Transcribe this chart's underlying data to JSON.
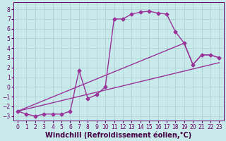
{
  "xlabel": "Windchill (Refroidissement éolien,°C)",
  "background_color": "#c8eaea",
  "line_color": "#993399",
  "grid_color": "#aacccc",
  "xlim": [
    -0.5,
    23.5
  ],
  "ylim": [
    -3.5,
    8.7
  ],
  "xticks": [
    0,
    1,
    2,
    3,
    4,
    5,
    6,
    7,
    8,
    9,
    10,
    11,
    12,
    13,
    14,
    15,
    16,
    17,
    18,
    19,
    20,
    21,
    22,
    23
  ],
  "yticks": [
    -3,
    -2,
    -1,
    0,
    1,
    2,
    3,
    4,
    5,
    6,
    7,
    8
  ],
  "line1_x": [
    0,
    1,
    2,
    3,
    4,
    5,
    6,
    7,
    8,
    9,
    10,
    11,
    12,
    13,
    14,
    15,
    16,
    17,
    18,
    19,
    20,
    21,
    22,
    23
  ],
  "line1_y": [
    -2.5,
    -2.8,
    -3.0,
    -2.8,
    -2.8,
    -2.8,
    -2.5,
    1.7,
    -1.2,
    -0.8,
    0.0,
    7.0,
    7.0,
    7.5,
    7.7,
    7.8,
    7.6,
    7.5,
    5.7,
    4.5,
    2.3,
    3.3,
    3.3,
    3.0
  ],
  "line2_x": [
    0,
    19,
    20,
    21,
    22,
    23
  ],
  "line2_y": [
    -2.5,
    4.5,
    2.3,
    3.3,
    3.3,
    3.0
  ],
  "line3_x": [
    0,
    23
  ],
  "line3_y": [
    -2.5,
    2.5
  ],
  "markersize": 2.5,
  "linewidth": 1.0,
  "xlabel_fontsize": 7,
  "tick_fontsize": 5.5
}
